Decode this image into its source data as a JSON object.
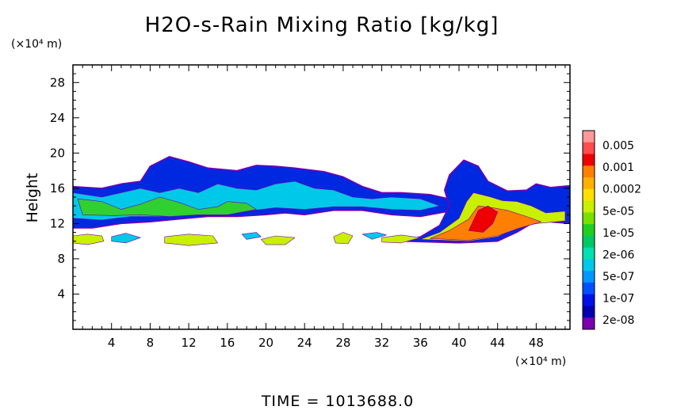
{
  "chart_data": {
    "type": "heatmap",
    "title": "H2O-s-Rain Mixing Ratio [kg/kg]",
    "xlabel": "",
    "ylabel": "Height",
    "x_unit": "(×10⁴ m)",
    "y_unit": "(×10⁴ m)",
    "xlim": [
      0,
      51.5
    ],
    "ylim": [
      0,
      30
    ],
    "x_ticks": [
      4,
      8,
      12,
      16,
      20,
      24,
      28,
      32,
      36,
      40,
      44,
      48
    ],
    "y_ticks": [
      4,
      8,
      12,
      16,
      20,
      24,
      28
    ],
    "footer": "TIME  =  1013688.0",
    "colorbar": {
      "labels": [
        "0.005",
        "0.001",
        "0.0002",
        "5e-05",
        "1e-05",
        "2e-06",
        "5e-07",
        "1e-07",
        "2e-08"
      ],
      "levels_top_to_bottom": [
        "#ff9898",
        "#ff4c4c",
        "#ee0000",
        "#ff7f00",
        "#ffb000",
        "#ffe000",
        "#c8f000",
        "#7ae000",
        "#20d020",
        "#00c864",
        "#00e0b0",
        "#00c8e8",
        "#0096ff",
        "#0050ff",
        "#0010e8",
        "#0000b0",
        "#7a00b0"
      ]
    },
    "regions": [
      {
        "name": "upper-anvil",
        "value_level": "1e-07",
        "color": "#0028e0",
        "polygon": [
          [
            0,
            16.2
          ],
          [
            3,
            16
          ],
          [
            5,
            16.5
          ],
          [
            7,
            16.8
          ],
          [
            8,
            18.5
          ],
          [
            10,
            19.6
          ],
          [
            12,
            19
          ],
          [
            14,
            18.3
          ],
          [
            17,
            18
          ],
          [
            19,
            18.6
          ],
          [
            21,
            18.5
          ],
          [
            23,
            18.3
          ],
          [
            26,
            17.9
          ],
          [
            28,
            17.3
          ],
          [
            30,
            16.2
          ],
          [
            32,
            15.5
          ],
          [
            34,
            15.5
          ],
          [
            37,
            15.3
          ],
          [
            39,
            14.8
          ],
          [
            39.5,
            13.5
          ],
          [
            36,
            12.8
          ],
          [
            33,
            13
          ],
          [
            30,
            13.5
          ],
          [
            27,
            13.5
          ],
          [
            24,
            13
          ],
          [
            22,
            13.2
          ],
          [
            20,
            13
          ],
          [
            17,
            12.8
          ],
          [
            14,
            12.8
          ],
          [
            11,
            12.5
          ],
          [
            8,
            12.2
          ],
          [
            5,
            12
          ],
          [
            2,
            11.5
          ],
          [
            0,
            11.5
          ]
        ]
      },
      {
        "name": "anvil-core",
        "value_level": "2e-06",
        "color": "#00c8e8",
        "polygon": [
          [
            0,
            15.5
          ],
          [
            3,
            15
          ],
          [
            5,
            15.5
          ],
          [
            7,
            16
          ],
          [
            9,
            15.5
          ],
          [
            11,
            16
          ],
          [
            13,
            15.5
          ],
          [
            15,
            16.5
          ],
          [
            17,
            16
          ],
          [
            19,
            15.8
          ],
          [
            21,
            16.5
          ],
          [
            23,
            16.8
          ],
          [
            25,
            16
          ],
          [
            27,
            15.8
          ],
          [
            29,
            15
          ],
          [
            31,
            14.8
          ],
          [
            33,
            15
          ],
          [
            36,
            14.8
          ],
          [
            38,
            14
          ],
          [
            36,
            13.5
          ],
          [
            33,
            13.6
          ],
          [
            30,
            13.9
          ],
          [
            27,
            13.9
          ],
          [
            24,
            13.6
          ],
          [
            21,
            13.8
          ],
          [
            18,
            13.4
          ],
          [
            15,
            13.4
          ],
          [
            12,
            13.2
          ],
          [
            9,
            12.8
          ],
          [
            6,
            12.8
          ],
          [
            3,
            12.4
          ],
          [
            0,
            12.6
          ]
        ]
      },
      {
        "name": "anvil-green",
        "value_level": "1e-05",
        "color": "#30d030",
        "polygon": [
          [
            0.5,
            14.8
          ],
          [
            3,
            14.5
          ],
          [
            5,
            13.6
          ],
          [
            7,
            14.2
          ],
          [
            9,
            15
          ],
          [
            11,
            14.4
          ],
          [
            13,
            13.6
          ],
          [
            15,
            13.9
          ],
          [
            16,
            14.5
          ],
          [
            18,
            14.3
          ],
          [
            19,
            13.6
          ],
          [
            16,
            13
          ],
          [
            13,
            13
          ],
          [
            10,
            12.8
          ],
          [
            7,
            13
          ],
          [
            4,
            12.9
          ],
          [
            1,
            13
          ]
        ]
      },
      {
        "name": "convective-tower",
        "value_level": "1e-07",
        "color": "#0028e0",
        "polygon": [
          [
            34,
            10
          ],
          [
            36,
            10.5
          ],
          [
            38,
            11.8
          ],
          [
            39,
            14
          ],
          [
            38.5,
            15.8
          ],
          [
            39,
            17.5
          ],
          [
            40.5,
            19.2
          ],
          [
            42,
            18.5
          ],
          [
            43,
            16.8
          ],
          [
            45,
            15.7
          ],
          [
            47,
            15.8
          ],
          [
            48,
            16.5
          ],
          [
            49.5,
            16.1
          ],
          [
            51.5,
            16.3
          ],
          [
            51.5,
            12
          ],
          [
            48,
            12.3
          ],
          [
            46,
            11
          ],
          [
            44,
            10
          ],
          [
            40,
            9.8
          ]
        ]
      },
      {
        "name": "tower-core",
        "value_level": "5e-05",
        "color": "#c8f000",
        "polygon": [
          [
            36,
            10.2
          ],
          [
            38,
            11
          ],
          [
            40,
            12.6
          ],
          [
            40.8,
            14.5
          ],
          [
            41.5,
            15.5
          ],
          [
            43,
            15.1
          ],
          [
            44.5,
            14.6
          ],
          [
            46,
            14.5
          ],
          [
            47.5,
            14
          ],
          [
            49,
            13.2
          ],
          [
            51,
            13.4
          ],
          [
            51,
            12.3
          ],
          [
            48,
            12
          ],
          [
            46,
            11.5
          ],
          [
            44,
            10.5
          ],
          [
            41,
            10
          ]
        ]
      },
      {
        "name": "tower-heavy",
        "value_level": "0.0002",
        "color": "#ff7f00",
        "polygon": [
          [
            37,
            10.3
          ],
          [
            39,
            11.2
          ],
          [
            41,
            12.5
          ],
          [
            42,
            14
          ],
          [
            43.5,
            13.8
          ],
          [
            45,
            13.5
          ],
          [
            47,
            12.8
          ],
          [
            48.5,
            12.2
          ],
          [
            46,
            11.4
          ],
          [
            44,
            10.6
          ],
          [
            41,
            10.1
          ]
        ]
      },
      {
        "name": "tower-peak",
        "value_level": "0.001",
        "color": "#ee0000",
        "polygon": [
          [
            41,
            11.2
          ],
          [
            42,
            13.5
          ],
          [
            43,
            14
          ],
          [
            44,
            13.3
          ],
          [
            43.5,
            12
          ],
          [
            42.5,
            11
          ]
        ]
      },
      {
        "name": "low-cell-1",
        "value_level": "5e-05",
        "color": "#c8f000",
        "polygon": [
          [
            0,
            10.6
          ],
          [
            1.5,
            10.8
          ],
          [
            3,
            10.6
          ],
          [
            3.2,
            10
          ],
          [
            1.5,
            9.6
          ],
          [
            0,
            9.8
          ]
        ]
      },
      {
        "name": "low-cell-2",
        "value_level": "2e-06",
        "color": "#00c8e8",
        "polygon": [
          [
            4,
            10.5
          ],
          [
            5.5,
            10.9
          ],
          [
            7,
            10.4
          ],
          [
            5.5,
            9.8
          ],
          [
            4,
            10
          ]
        ]
      },
      {
        "name": "low-cell-3",
        "value_level": "5e-05",
        "color": "#c8f000",
        "polygon": [
          [
            9.5,
            10.5
          ],
          [
            12,
            10.8
          ],
          [
            14.5,
            10.6
          ],
          [
            15,
            9.8
          ],
          [
            12,
            9.5
          ],
          [
            9.5,
            9.8
          ]
        ]
      },
      {
        "name": "low-cell-4",
        "value_level": "2e-06",
        "color": "#00c8e8",
        "polygon": [
          [
            17.5,
            10.8
          ],
          [
            19,
            11
          ],
          [
            19.5,
            10.5
          ],
          [
            18,
            10.2
          ]
        ]
      },
      {
        "name": "low-cell-5",
        "value_level": "5e-05",
        "color": "#c8f000",
        "polygon": [
          [
            19.5,
            10.2
          ],
          [
            21,
            10.6
          ],
          [
            23,
            10.4
          ],
          [
            22,
            9.6
          ],
          [
            20,
            9.6
          ]
        ]
      },
      {
        "name": "low-cell-6",
        "value_level": "5e-05",
        "color": "#c8f000",
        "polygon": [
          [
            27,
            10.5
          ],
          [
            28,
            11
          ],
          [
            29,
            10.6
          ],
          [
            28.5,
            9.7
          ],
          [
            27.2,
            9.8
          ]
        ]
      },
      {
        "name": "low-cell-7",
        "value_level": "2e-06",
        "color": "#00c8e8",
        "polygon": [
          [
            30,
            10.8
          ],
          [
            31.5,
            11
          ],
          [
            32.5,
            10.7
          ],
          [
            31,
            10.2
          ]
        ]
      },
      {
        "name": "low-cell-8",
        "value_level": "5e-05",
        "color": "#c8f000",
        "polygon": [
          [
            32,
            10.4
          ],
          [
            34,
            10.7
          ],
          [
            36,
            10.4
          ],
          [
            34,
            9.8
          ],
          [
            32,
            9.9
          ]
        ]
      }
    ]
  }
}
